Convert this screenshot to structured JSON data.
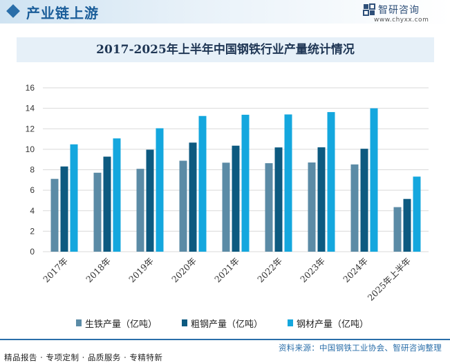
{
  "header": {
    "section_title": "产业链上游",
    "brand_name": "智研咨询",
    "brand_url": "www.chyxx.com"
  },
  "colors": {
    "pig_iron": "#5b8ba6",
    "crude_steel": "#0d5a80",
    "steel_products": "#14a7de",
    "accent": "#2a6ea9"
  },
  "chart_data": {
    "type": "bar",
    "title": "2017-2025年上半年中国钢铁行业产量统计情况",
    "categories": [
      "2017年",
      "2018年",
      "2019年",
      "2020年",
      "2021年",
      "2022年",
      "2023年",
      "2024年",
      "2025年上半年"
    ],
    "series": [
      {
        "name": "生铁产量（亿吨）",
        "values": [
          7.11,
          7.71,
          8.09,
          8.88,
          8.69,
          8.64,
          8.71,
          8.52,
          4.35
        ]
      },
      {
        "name": "粗钢产量（亿吨）",
        "values": [
          8.32,
          9.28,
          9.96,
          10.65,
          10.35,
          10.18,
          10.19,
          10.05,
          5.15
        ]
      },
      {
        "name": "钢材产量（亿吨）",
        "values": [
          10.48,
          11.06,
          12.05,
          13.25,
          13.37,
          13.4,
          13.63,
          14.0,
          7.33
        ]
      }
    ],
    "ylim": [
      0,
      16
    ],
    "yticks": [
      0,
      2,
      4,
      6,
      8,
      10,
      12,
      14,
      16
    ],
    "grid": true,
    "legend_position": "bottom"
  },
  "footer": {
    "left_text": "精品报告 · 专项定制 · 品质服务 · 专精特新",
    "source_text": "资料来源：中国钢铁工业协会、智研咨询整理"
  }
}
